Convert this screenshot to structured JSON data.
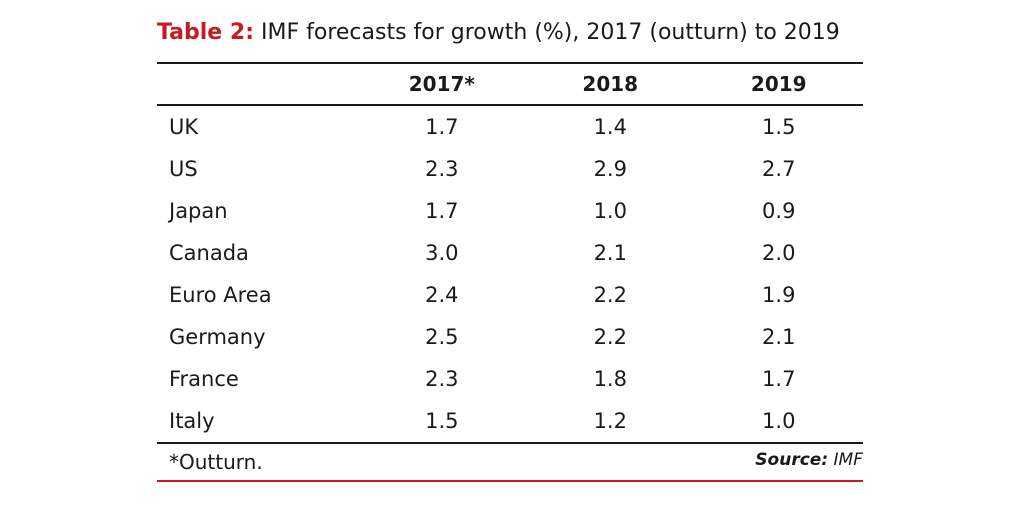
{
  "title": {
    "label": "Table 2:",
    "text": "IMF forecasts for growth (%), 2017 (outturn) to 2019"
  },
  "table": {
    "headers": [
      "",
      "2017*",
      "2018",
      "2019"
    ],
    "rows": [
      {
        "country": "UK",
        "values": [
          "1.7",
          "1.4",
          "1.5"
        ]
      },
      {
        "country": "US",
        "values": [
          "2.3",
          "2.9",
          "2.7"
        ]
      },
      {
        "country": "Japan",
        "values": [
          "1.7",
          "1.0",
          "0.9"
        ]
      },
      {
        "country": "Canada",
        "values": [
          "3.0",
          "2.1",
          "2.0"
        ]
      },
      {
        "country": "Euro Area",
        "values": [
          "2.4",
          "2.2",
          "1.9"
        ]
      },
      {
        "country": "Germany",
        "values": [
          "2.5",
          "2.2",
          "2.1"
        ]
      },
      {
        "country": "France",
        "values": [
          "2.3",
          "1.8",
          "1.7"
        ]
      },
      {
        "country": "Italy",
        "values": [
          "1.5",
          "1.2",
          "1.0"
        ]
      }
    ]
  },
  "footer": {
    "footnote": "*Outturn.",
    "source_label": "Source:",
    "source_value": "IMF"
  },
  "colors": {
    "accent": "#c8191f",
    "text": "#1a1a1a"
  }
}
